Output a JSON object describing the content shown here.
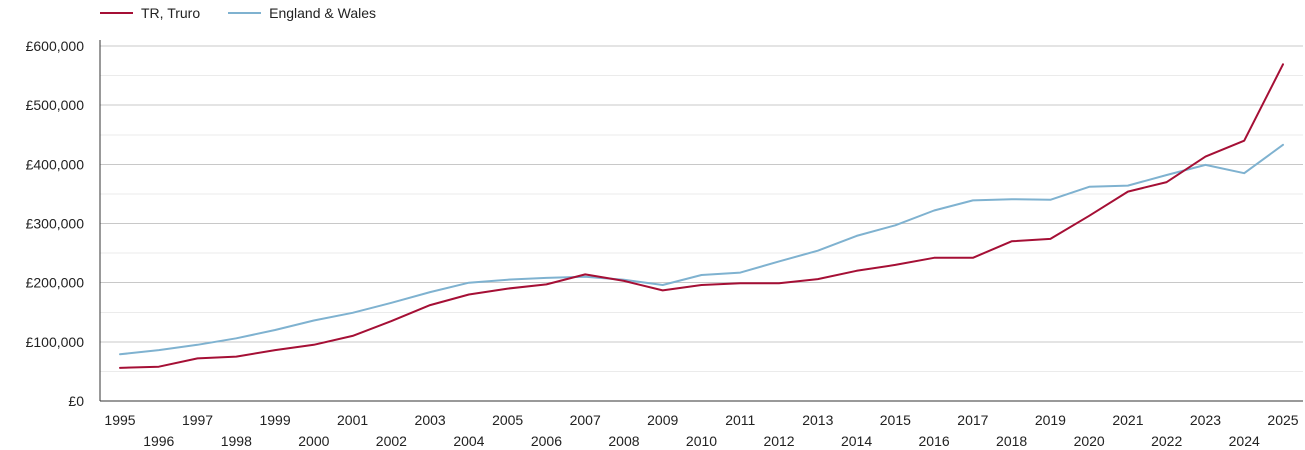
{
  "chart_data": {
    "type": "line",
    "x": [
      1995,
      1996,
      1997,
      1998,
      1999,
      2000,
      2001,
      2002,
      2003,
      2004,
      2005,
      2006,
      2007,
      2008,
      2009,
      2010,
      2011,
      2012,
      2013,
      2014,
      2015,
      2016,
      2017,
      2018,
      2019,
      2020,
      2021,
      2022,
      2023,
      2024,
      2025
    ],
    "series": [
      {
        "name": "TR, Truro",
        "color": "#a50f35",
        "values": [
          56000,
          58000,
          72000,
          75000,
          86000,
          95000,
          110000,
          135000,
          162000,
          180000,
          190000,
          197000,
          214000,
          203000,
          187000,
          196000,
          199000,
          199000,
          206000,
          220000,
          230000,
          242000,
          242000,
          270000,
          274000,
          313000,
          354000,
          370000,
          413000,
          440000,
          569000
        ]
      },
      {
        "name": "England & Wales",
        "color": "#7fb2d0",
        "values": [
          79000,
          86000,
          95000,
          106000,
          120000,
          136000,
          149000,
          166000,
          184000,
          200000,
          205000,
          208000,
          210000,
          205000,
          196000,
          213000,
          217000,
          236000,
          254000,
          279000,
          297000,
          322000,
          339000,
          341000,
          340000,
          362000,
          364000,
          382000,
          399000,
          385000,
          433000
        ]
      }
    ],
    "ytick_labels": [
      "£0",
      "£100,000",
      "£200,000",
      "£300,000",
      "£400,000",
      "£500,000",
      "£600,000"
    ],
    "ylim": [
      0,
      600000
    ],
    "grid": true,
    "legend_position": "top-left",
    "title": "",
    "xlabel": "",
    "ylabel": ""
  }
}
